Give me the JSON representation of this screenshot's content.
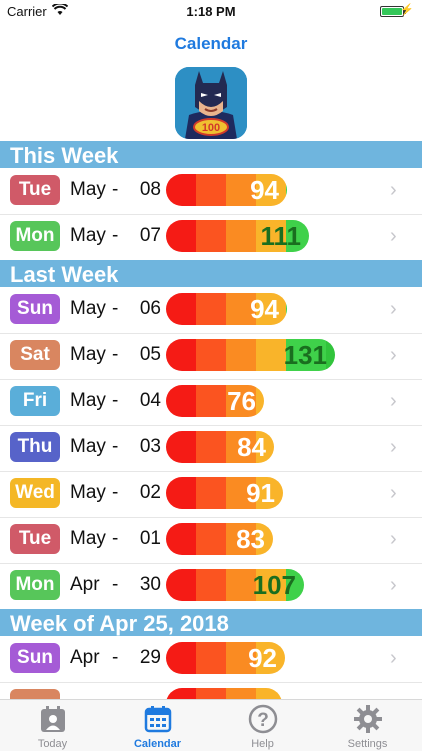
{
  "status": {
    "carrier": "Carrier",
    "time": "1:18 PM"
  },
  "nav": {
    "title": "Calendar"
  },
  "logo": {
    "badge": "100"
  },
  "colors": {
    "accent": "#1f7adf",
    "header": "#6fb5de"
  },
  "sections": [
    {
      "title": "This Week",
      "rows": [
        {
          "day": "Tue",
          "day_color": "#d05a68",
          "month": "May",
          "date": "08",
          "score": "94"
        },
        {
          "day": "Mon",
          "day_color": "#57c65a",
          "month": "May",
          "date": "07",
          "score": "111"
        }
      ]
    },
    {
      "title": "Last Week",
      "rows": [
        {
          "day": "Sun",
          "day_color": "#a55bd6",
          "month": "May",
          "date": "06",
          "score": "94"
        },
        {
          "day": "Sat",
          "day_color": "#d98660",
          "month": "May",
          "date": "05",
          "score": "131"
        },
        {
          "day": "Fri",
          "day_color": "#5aaed9",
          "month": "May",
          "date": "04",
          "score": "76"
        },
        {
          "day": "Thu",
          "day_color": "#5763c9",
          "month": "May",
          "date": "03",
          "score": "84"
        },
        {
          "day": "Wed",
          "day_color": "#f4b726",
          "month": "May",
          "date": "02",
          "score": "91"
        },
        {
          "day": "Tue",
          "day_color": "#d05a68",
          "month": "May",
          "date": "01",
          "score": "83"
        },
        {
          "day": "Mon",
          "day_color": "#57c65a",
          "month": "Apr",
          "date": "30",
          "score": "107"
        }
      ]
    },
    {
      "title": "Week of Apr 25, 2018",
      "rows": [
        {
          "day": "Sun",
          "day_color": "#a55bd6",
          "month": "Apr",
          "date": "29",
          "score": "92"
        },
        {
          "day": "",
          "day_color": "#d98660",
          "month": "",
          "date": "",
          "score": ""
        }
      ]
    }
  ],
  "tabs": [
    {
      "label": "Today",
      "icon": "today-icon"
    },
    {
      "label": "Calendar",
      "icon": "calendar-icon"
    },
    {
      "label": "Help",
      "icon": "help-icon"
    },
    {
      "label": "Settings",
      "icon": "settings-icon"
    }
  ]
}
